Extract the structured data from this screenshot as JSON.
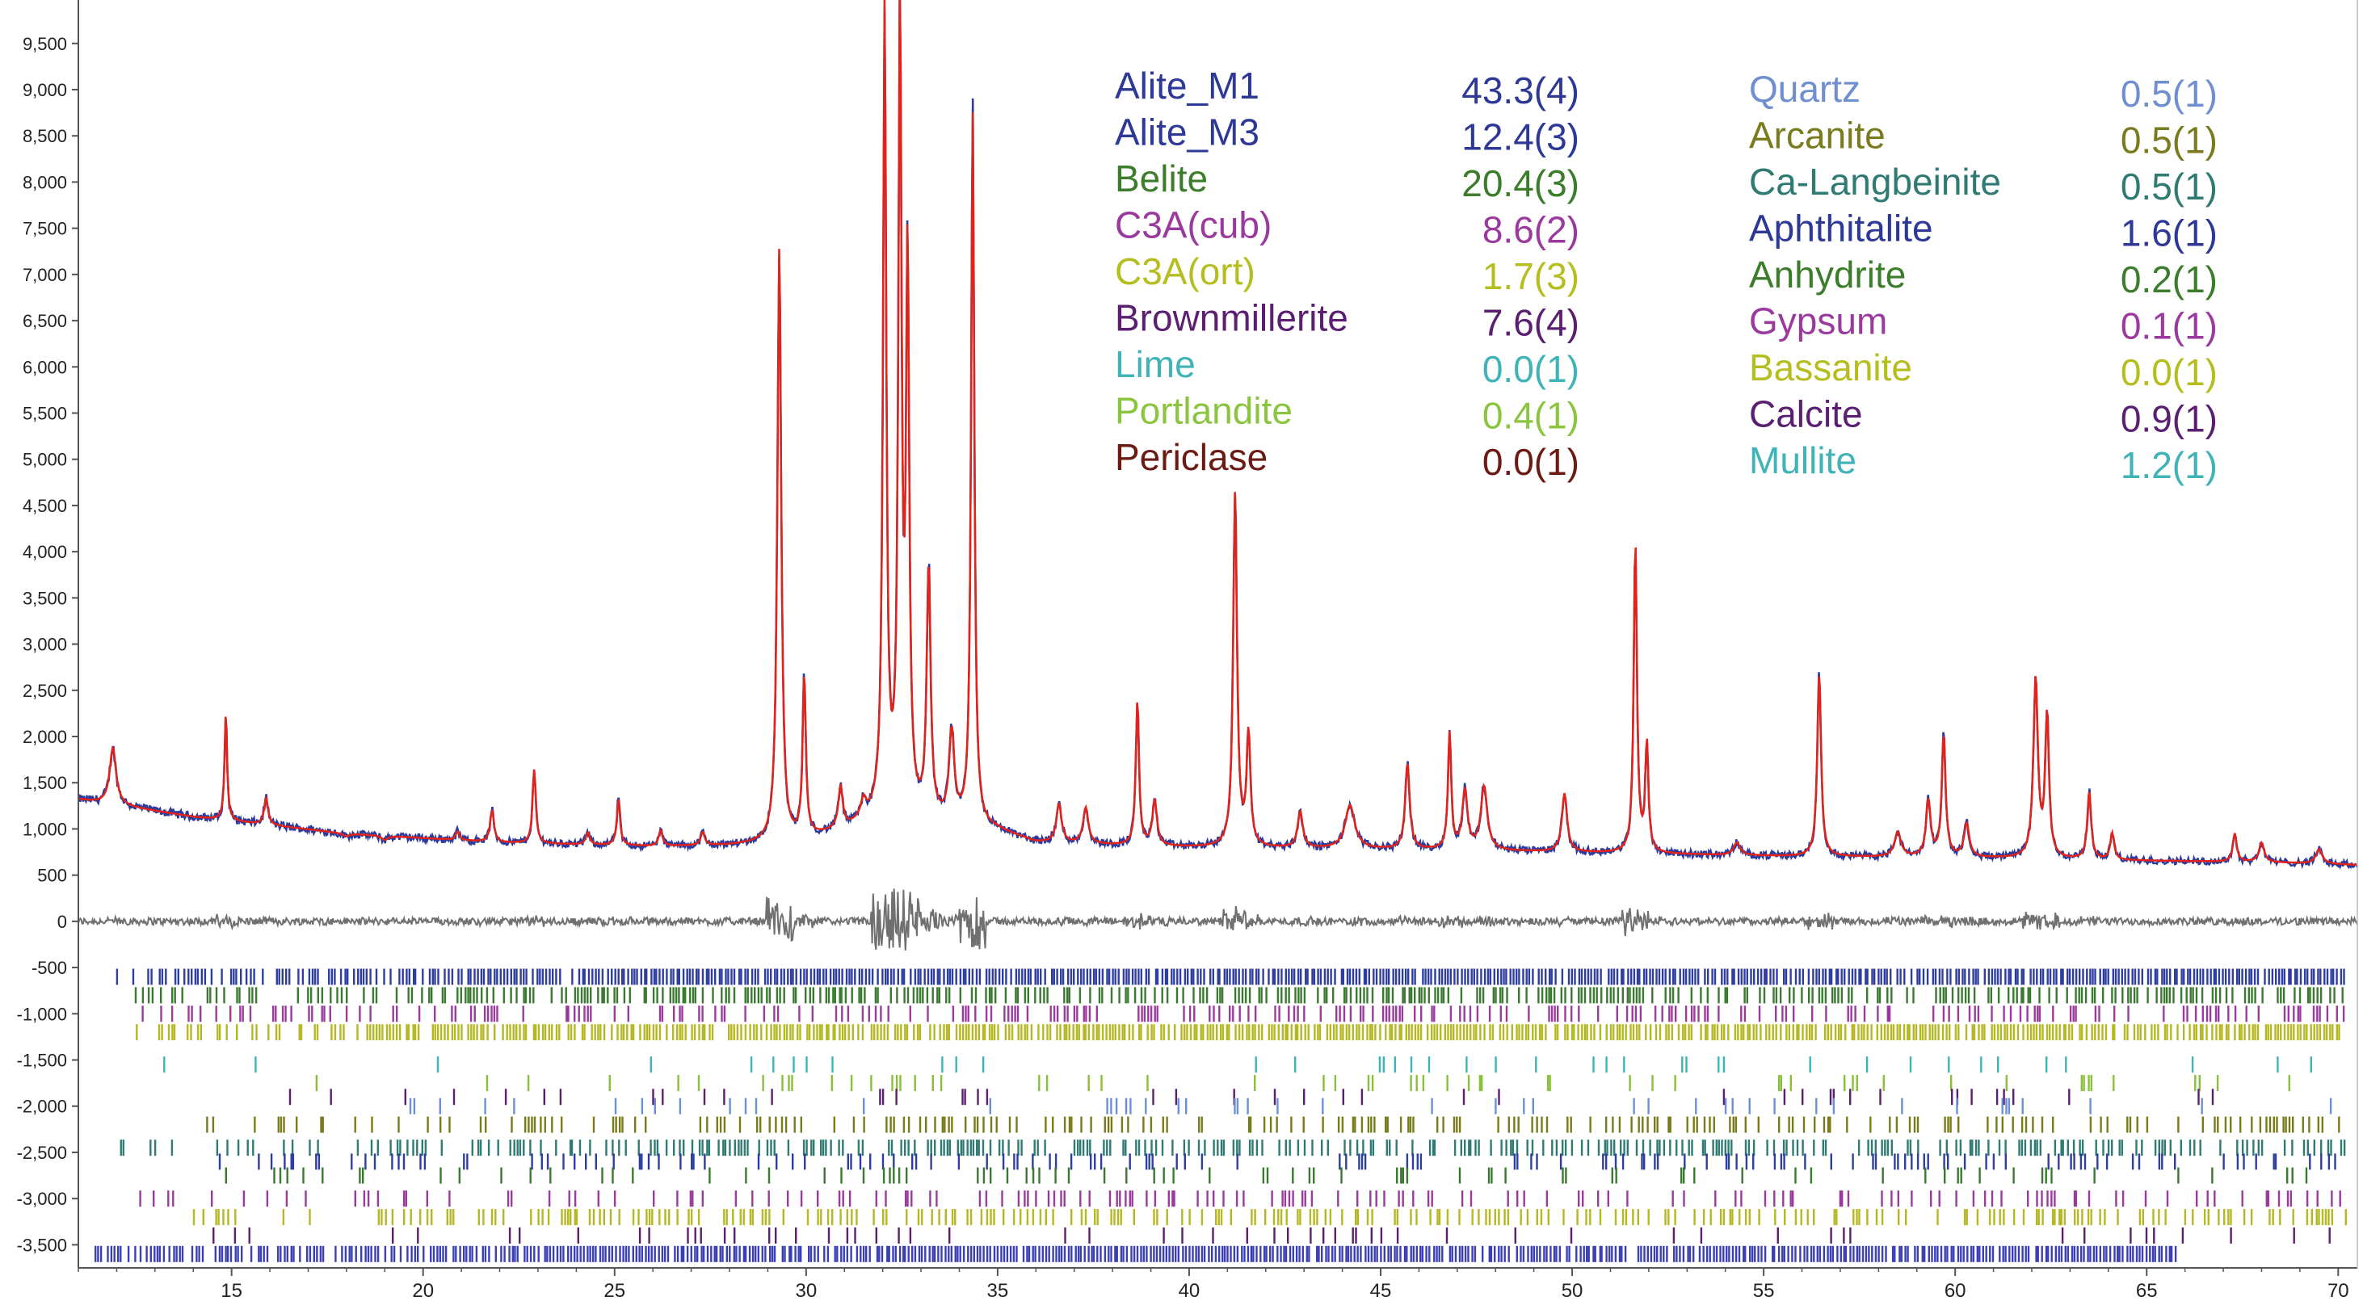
{
  "chart_data": {
    "type": "line",
    "title": "",
    "xlabel": "",
    "ylabel": "",
    "xlim": [
      11,
      70.5
    ],
    "ylim": [
      -3750,
      9900
    ],
    "xticks": [
      15,
      20,
      25,
      30,
      35,
      40,
      45,
      50,
      55,
      60,
      65,
      70
    ],
    "xtick_labels": [
      "15",
      "20",
      "25",
      "30",
      "35",
      "40",
      "45",
      "50",
      "55",
      "60",
      "65",
      "70"
    ],
    "yticks": [
      9500,
      9000,
      8500,
      8000,
      7500,
      7000,
      6500,
      6000,
      5500,
      5000,
      4500,
      4000,
      3500,
      3000,
      2500,
      2000,
      1500,
      1000,
      500,
      0,
      -500,
      -1000,
      -1500,
      -2000,
      -2500,
      -3000,
      -3500
    ],
    "ytick_labels": [
      "9,500",
      "9,000",
      "8,500",
      "8,000",
      "7,500",
      "7,000",
      "6,500",
      "6,000",
      "5,500",
      "5,000",
      "4,500",
      "4,000",
      "3,500",
      "3,000",
      "2,500",
      "2,000",
      "1,500",
      "1,000",
      "500",
      "0",
      "-500",
      "-1,000",
      "-1,500",
      "-2,000",
      "-2,500",
      "-3,000",
      "-3,500"
    ],
    "background": {
      "x": [
        11,
        14,
        18,
        22,
        26,
        28,
        29.5,
        31,
        32,
        35,
        36,
        38,
        40,
        44,
        48,
        52,
        56,
        60,
        64,
        68,
        70.5
      ],
      "y": [
        1320,
        1130,
        950,
        850,
        810,
        820,
        850,
        980,
        1150,
        980,
        850,
        820,
        800,
        780,
        760,
        730,
        700,
        690,
        660,
        640,
        610
      ]
    },
    "peaks": [
      {
        "x": 11.9,
        "y": 1880,
        "w": 0.1
      },
      {
        "x": 14.85,
        "y": 2250,
        "w": 0.04
      },
      {
        "x": 15.9,
        "y": 1340,
        "w": 0.06
      },
      {
        "x": 18.0,
        "y": 920,
        "w": 0.1
      },
      {
        "x": 19.0,
        "y": 880,
        "w": 0.1
      },
      {
        "x": 20.9,
        "y": 970,
        "w": 0.06
      },
      {
        "x": 21.8,
        "y": 1200,
        "w": 0.06
      },
      {
        "x": 22.9,
        "y": 1640,
        "w": 0.05
      },
      {
        "x": 24.3,
        "y": 960,
        "w": 0.06
      },
      {
        "x": 25.1,
        "y": 1320,
        "w": 0.05
      },
      {
        "x": 26.2,
        "y": 980,
        "w": 0.06
      },
      {
        "x": 27.3,
        "y": 960,
        "w": 0.06
      },
      {
        "x": 29.3,
        "y": 7280,
        "w": 0.06
      },
      {
        "x": 29.95,
        "y": 2630,
        "w": 0.05
      },
      {
        "x": 30.9,
        "y": 1420,
        "w": 0.07
      },
      {
        "x": 31.5,
        "y": 1250,
        "w": 0.08
      },
      {
        "x": 32.05,
        "y": 9850,
        "w": 0.05
      },
      {
        "x": 32.45,
        "y": 9780,
        "w": 0.05
      },
      {
        "x": 32.65,
        "y": 7000,
        "w": 0.05
      },
      {
        "x": 33.2,
        "y": 3790,
        "w": 0.06
      },
      {
        "x": 33.8,
        "y": 2000,
        "w": 0.08
      },
      {
        "x": 34.35,
        "y": 8750,
        "w": 0.05
      },
      {
        "x": 36.6,
        "y": 1260,
        "w": 0.08
      },
      {
        "x": 37.3,
        "y": 1220,
        "w": 0.08
      },
      {
        "x": 38.65,
        "y": 2380,
        "w": 0.05
      },
      {
        "x": 39.1,
        "y": 1300,
        "w": 0.07
      },
      {
        "x": 41.2,
        "y": 4620,
        "w": 0.06
      },
      {
        "x": 41.55,
        "y": 2000,
        "w": 0.06
      },
      {
        "x": 42.9,
        "y": 1180,
        "w": 0.08
      },
      {
        "x": 44.2,
        "y": 1250,
        "w": 0.15
      },
      {
        "x": 45.7,
        "y": 1700,
        "w": 0.07
      },
      {
        "x": 46.8,
        "y": 2020,
        "w": 0.05
      },
      {
        "x": 47.2,
        "y": 1400,
        "w": 0.08
      },
      {
        "x": 47.7,
        "y": 1450,
        "w": 0.1
      },
      {
        "x": 49.8,
        "y": 1380,
        "w": 0.08
      },
      {
        "x": 51.65,
        "y": 4100,
        "w": 0.05
      },
      {
        "x": 51.95,
        "y": 1900,
        "w": 0.05
      },
      {
        "x": 54.3,
        "y": 850,
        "w": 0.1
      },
      {
        "x": 56.45,
        "y": 2670,
        "w": 0.06
      },
      {
        "x": 58.5,
        "y": 960,
        "w": 0.1
      },
      {
        "x": 59.3,
        "y": 1300,
        "w": 0.07
      },
      {
        "x": 59.7,
        "y": 2000,
        "w": 0.06
      },
      {
        "x": 60.3,
        "y": 1050,
        "w": 0.08
      },
      {
        "x": 62.1,
        "y": 2600,
        "w": 0.07
      },
      {
        "x": 62.4,
        "y": 2200,
        "w": 0.06
      },
      {
        "x": 63.5,
        "y": 1400,
        "w": 0.06
      },
      {
        "x": 64.1,
        "y": 950,
        "w": 0.06
      },
      {
        "x": 67.3,
        "y": 950,
        "w": 0.06
      },
      {
        "x": 68.0,
        "y": 850,
        "w": 0.08
      },
      {
        "x": 69.5,
        "y": 780,
        "w": 0.1
      }
    ],
    "difference_baseline": 0,
    "series": [
      {
        "role": "observed",
        "color": "#2b3b9e"
      },
      {
        "role": "calculated",
        "color": "#e2231a"
      },
      {
        "role": "difference",
        "color": "#707070"
      }
    ],
    "tick_rows": [
      {
        "y": -600,
        "color": "#2e3ea0",
        "density": 0.95,
        "xmin": 12.0,
        "xmax": 70.2
      },
      {
        "y": -800,
        "color": "#3a7a30",
        "density": 0.6,
        "xmin": 12.5,
        "xmax": 70.2
      },
      {
        "y": -1000,
        "color": "#9a3a9e",
        "density": 0.35,
        "xmin": 12.5,
        "xmax": 70.2
      },
      {
        "y": -1200,
        "color": "#b5b822",
        "density": 0.85,
        "xmin": 12.5,
        "xmax": 70.2
      },
      {
        "y": -1550,
        "color": "#3db4b4",
        "density": 0.06,
        "xmin": 12.5,
        "xmax": 70.2
      },
      {
        "y": -1750,
        "color": "#88c03a",
        "density": 0.08,
        "xmin": 14.0,
        "xmax": 70.2
      },
      {
        "y": -1900,
        "color": "#5a2070",
        "density": 0.06,
        "xmin": 14.0,
        "xmax": 70.2
      },
      {
        "y": -2000,
        "color": "#6d8fd8",
        "density": 0.08,
        "xmin": 15.0,
        "xmax": 70.2
      },
      {
        "y": -2200,
        "color": "#7a7a1a",
        "density": 0.35,
        "xmin": 14.0,
        "xmax": 70.2
      },
      {
        "y": -2450,
        "color": "#2f7a72",
        "density": 0.45,
        "xmin": 11.5,
        "xmax": 70.2
      },
      {
        "y": -2600,
        "color": "#2e3ea0",
        "density": 0.2,
        "xmin": 14.5,
        "xmax": 70.2
      },
      {
        "y": -2750,
        "color": "#3a7a30",
        "density": 0.15,
        "xmin": 14.5,
        "xmax": 70.2
      },
      {
        "y": -3000,
        "color": "#9a3a9e",
        "density": 0.25,
        "xmin": 11.5,
        "xmax": 70.2
      },
      {
        "y": -3200,
        "color": "#b5b822",
        "density": 0.4,
        "xmin": 14.0,
        "xmax": 70.2
      },
      {
        "y": -3400,
        "color": "#5a2070",
        "density": 0.1,
        "xmin": 14.0,
        "xmax": 70.2
      },
      {
        "y": -3600,
        "color": "#3a3fb5",
        "density": 0.95,
        "xmin": 11.1,
        "xmax": 65.8
      }
    ],
    "legend": {
      "placement": "top-center",
      "columns": [
        [
          {
            "name": "Alite_M1",
            "value": "43.3(4)",
            "color": "#2e3896"
          },
          {
            "name": "Alite_M3",
            "value": "12.4(3)",
            "color": "#2e3896"
          },
          {
            "name": "Belite",
            "value": "20.4(3)",
            "color": "#3b7d2a"
          },
          {
            "name": "C3A(cub)",
            "value": "8.6(2)",
            "color": "#9a3a9e"
          },
          {
            "name": "C3A(ort)",
            "value": "1.7(3)",
            "color": "#b6bd1f"
          },
          {
            "name": "Brownmillerite",
            "value": "7.6(4)",
            "color": "#5b1f72"
          },
          {
            "name": "Lime",
            "value": "0.0(1)",
            "color": "#3fb3b8"
          },
          {
            "name": "Portlandite",
            "value": "0.4(1)",
            "color": "#8bc53f"
          },
          {
            "name": "Periclase",
            "value": "0.0(1)",
            "color": "#6b1a14"
          }
        ],
        [
          {
            "name": "Quartz",
            "value": "0.5(1)",
            "color": "#6f8fd0"
          },
          {
            "name": "Arcanite",
            "value": "0.5(1)",
            "color": "#7a7a1e"
          },
          {
            "name": "Ca-Langbeinite",
            "value": "0.5(1)",
            "color": "#2f7a72"
          },
          {
            "name": "Aphthitalite",
            "value": "1.6(1)",
            "color": "#2e3896"
          },
          {
            "name": "Anhydrite",
            "value": "0.2(1)",
            "color": "#3b7d2a"
          },
          {
            "name": "Gypsum",
            "value": "0.1(1)",
            "color": "#9a3a9e"
          },
          {
            "name": "Bassanite",
            "value": "0.0(1)",
            "color": "#b6bd1f"
          },
          {
            "name": "Calcite",
            "value": "0.9(1)",
            "color": "#5b1f72"
          },
          {
            "name": "Mullite",
            "value": "1.2(1)",
            "color": "#3fb3b8"
          }
        ]
      ]
    }
  }
}
